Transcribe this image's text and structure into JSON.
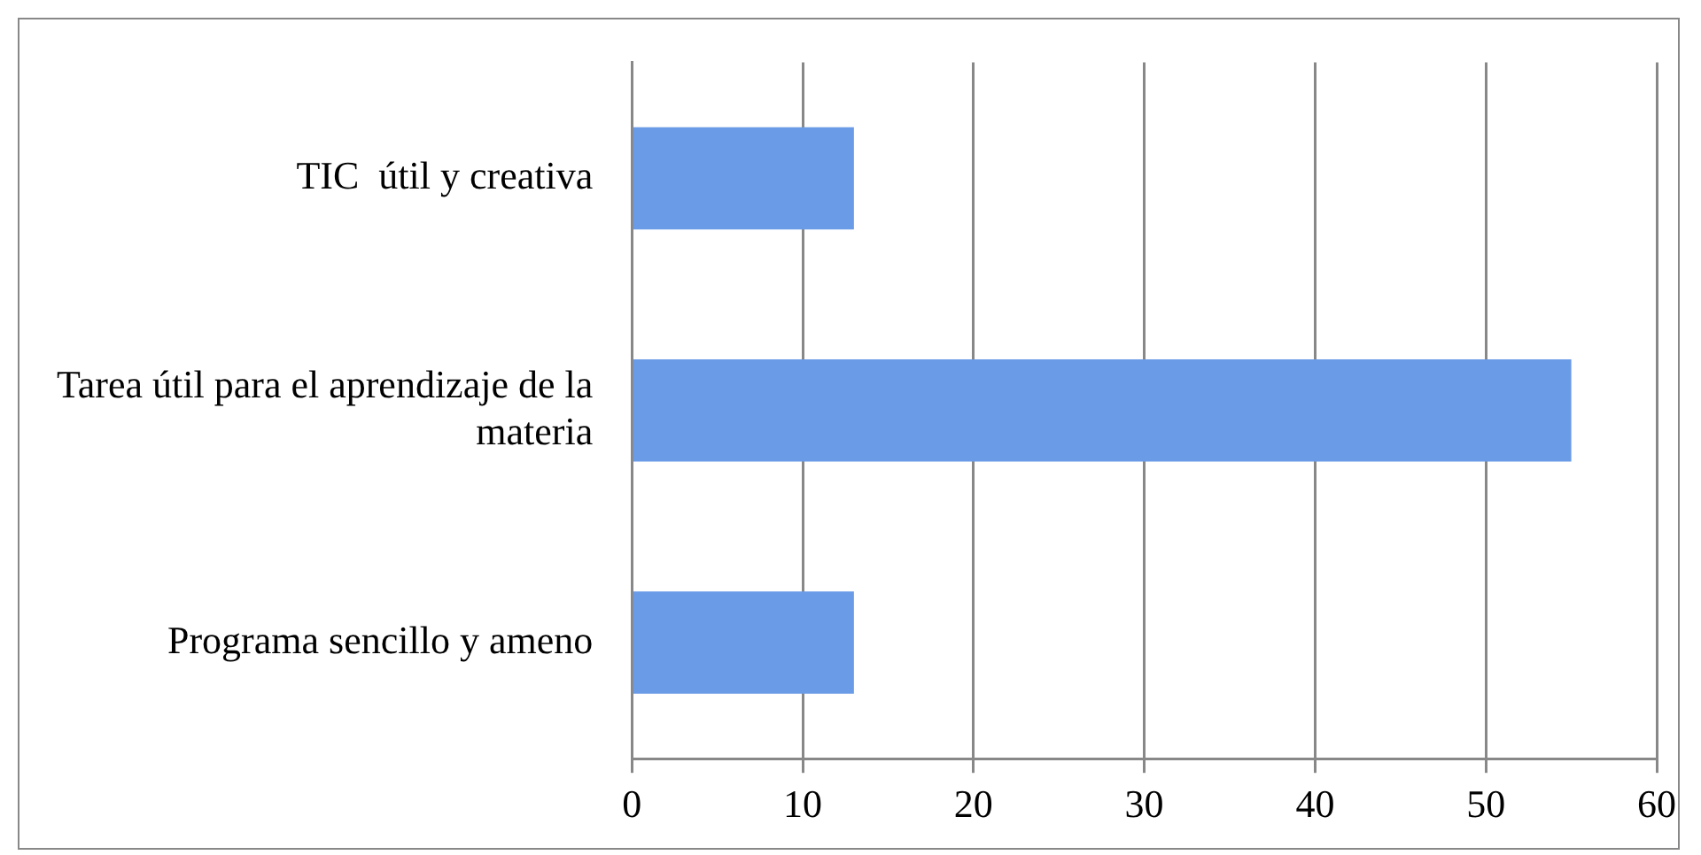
{
  "chart_data": {
    "type": "bar",
    "orientation": "horizontal",
    "categories": [
      "TIC  útil y creativa",
      "Tarea útil para el aprendizaje de la materia",
      "Programa sencillo y ameno"
    ],
    "values": [
      13,
      55,
      13
    ],
    "color": "#6a9be6",
    "xlim": [
      0,
      60
    ],
    "xticks": [
      0,
      10,
      20,
      30,
      40,
      50,
      60
    ],
    "grid": "x"
  }
}
